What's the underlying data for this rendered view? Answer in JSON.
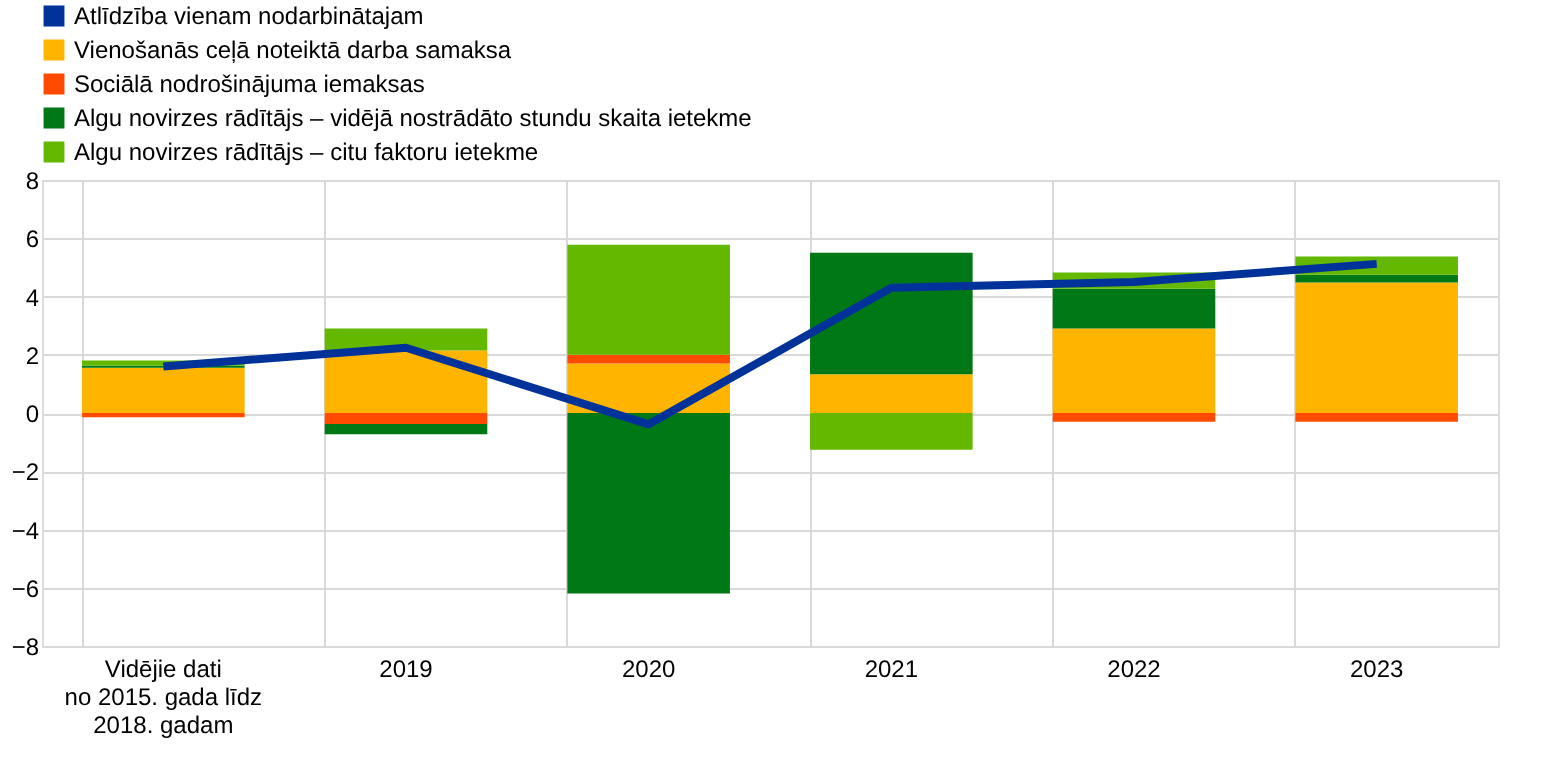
{
  "chart_data": {
    "type": "bar",
    "stacked": true,
    "categories": [
      "Vidējie dati\nno 2015. gada līdz\n2018. gadam",
      "2019",
      "2020",
      "2021",
      "2022",
      "2023"
    ],
    "series": [
      {
        "name": "Atlīdzība vienam nodarbinātajam",
        "type": "line",
        "color": "#003299",
        "values": [
          1.6,
          2.24,
          -0.39,
          4.3,
          4.5,
          5.12
        ]
      },
      {
        "name": "Vienošanās ceļā noteiktā darba samaksa",
        "color": "#ffb400",
        "values": [
          1.55,
          2.15,
          1.7,
          1.33,
          2.9,
          4.48
        ]
      },
      {
        "name": "Sociālā nodrošinājuma iemaksas",
        "color": "#ff4b00",
        "values": [
          -0.15,
          -0.38,
          0.3,
          0,
          -0.3,
          -0.3
        ]
      },
      {
        "name": "Algu novirzes rādītājs – vidējā nostrādāto stundu skaita ietekme",
        "color": "#007816",
        "values": [
          0.07,
          -0.35,
          -6.2,
          4.17,
          1.37,
          0.27
        ]
      },
      {
        "name": "Algu novirzes rādītājs – citu faktoru ietekme",
        "color": "#65b800",
        "values": [
          0.18,
          0.75,
          3.78,
          -1.26,
          0.55,
          0.62
        ]
      }
    ],
    "ylim": [
      -8,
      8
    ],
    "yticks": [
      -8,
      -6,
      -4,
      -2,
      0,
      2,
      4,
      6,
      8
    ],
    "grid": true,
    "legend": "top left"
  }
}
